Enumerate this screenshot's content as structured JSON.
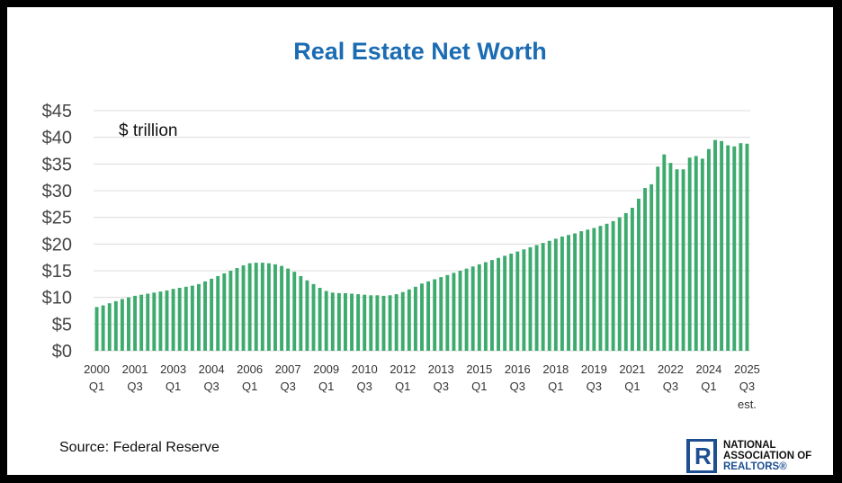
{
  "chart_data": {
    "type": "bar",
    "title": "Real Estate Net Worth",
    "unit_label": "$ trillion",
    "source": "Source: Federal Reserve",
    "ylim": [
      0,
      45
    ],
    "yticks": [
      "$0",
      "$5",
      "$10",
      "$15",
      "$20",
      "$25",
      "$30",
      "$35",
      "$40",
      "$45"
    ],
    "grid": true,
    "bar_color": "#3daa6e",
    "x_tick_labels": [
      {
        "year": "2000",
        "quarter": "Q1"
      },
      {
        "year": "2001",
        "quarter": "Q3"
      },
      {
        "year": "2003",
        "quarter": "Q1"
      },
      {
        "year": "2004",
        "quarter": "Q3"
      },
      {
        "year": "2006",
        "quarter": "Q1"
      },
      {
        "year": "2007",
        "quarter": "Q3"
      },
      {
        "year": "2009",
        "quarter": "Q1"
      },
      {
        "year": "2010",
        "quarter": "Q3"
      },
      {
        "year": "2012",
        "quarter": "Q1"
      },
      {
        "year": "2013",
        "quarter": "Q3"
      },
      {
        "year": "2015",
        "quarter": "Q1"
      },
      {
        "year": "2016",
        "quarter": "Q3"
      },
      {
        "year": "2018",
        "quarter": "Q1"
      },
      {
        "year": "2019",
        "quarter": "Q3"
      },
      {
        "year": "2021",
        "quarter": "Q1"
      },
      {
        "year": "2022",
        "quarter": "Q3"
      },
      {
        "year": "2024",
        "quarter": "Q1"
      },
      {
        "year": "2025",
        "quarter": "Q3",
        "note": "est."
      }
    ],
    "first_period": "2000 Q1",
    "last_period": "2025 Q3",
    "values": [
      8.2,
      8.5,
      8.9,
      9.3,
      9.7,
      10.0,
      10.3,
      10.5,
      10.7,
      10.9,
      11.1,
      11.3,
      11.6,
      11.8,
      12.0,
      12.2,
      12.5,
      13.0,
      13.5,
      14.0,
      14.5,
      15.0,
      15.5,
      16.0,
      16.4,
      16.5,
      16.5,
      16.4,
      16.2,
      15.9,
      15.4,
      14.8,
      14.0,
      13.2,
      12.5,
      11.8,
      11.2,
      10.9,
      10.8,
      10.8,
      10.7,
      10.6,
      10.5,
      10.4,
      10.4,
      10.3,
      10.4,
      10.6,
      11.0,
      11.5,
      12.0,
      12.6,
      13.0,
      13.4,
      13.8,
      14.2,
      14.6,
      15.0,
      15.4,
      15.8,
      16.2,
      16.6,
      17.0,
      17.4,
      17.8,
      18.2,
      18.6,
      19.0,
      19.4,
      19.8,
      20.2,
      20.6,
      21.0,
      21.4,
      21.7,
      22.0,
      22.4,
      22.7,
      23.0,
      23.4,
      23.8,
      24.3,
      25.0,
      25.8,
      26.8,
      28.5,
      30.5,
      31.2,
      34.5,
      36.8,
      35.2,
      34.0,
      34.0,
      36.2,
      36.5,
      36.0,
      37.8,
      39.5,
      39.3,
      38.5,
      38.3,
      38.9,
      38.8
    ]
  },
  "logo": {
    "letter": "R",
    "line1": "NATIONAL",
    "line2": "ASSOCIATION OF",
    "line3": "REALTORS®"
  }
}
